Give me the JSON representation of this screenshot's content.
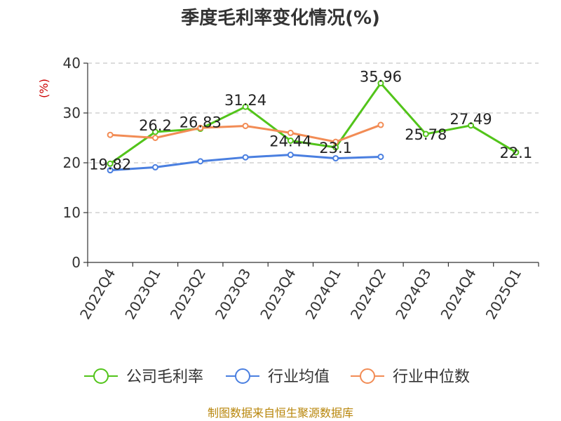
{
  "chart_data": {
    "type": "line",
    "title": "季度毛利率变化情况(%)",
    "unit_label": "(%)",
    "categories": [
      "2022Q4",
      "2023Q1",
      "2023Q2",
      "2023Q3",
      "2023Q4",
      "2024Q1",
      "2024Q2",
      "2024Q3",
      "2024Q4",
      "2025Q1"
    ],
    "ylim": [
      0,
      40
    ],
    "yticks": [
      0,
      10,
      20,
      30,
      40
    ],
    "grid": true,
    "legend_position": "bottom",
    "series": [
      {
        "name": "公司毛利率",
        "color": "#52c41a",
        "values": [
          19.82,
          26.2,
          26.83,
          31.24,
          24.44,
          23.1,
          35.96,
          25.78,
          27.49,
          22.1
        ],
        "labels": [
          "19.82",
          "26.2",
          "26.83",
          "31.24",
          "24.44",
          "23.1",
          "35.96",
          "25.78",
          "27.49",
          "22.1"
        ]
      },
      {
        "name": "行业均值",
        "color": "#4a7fe0",
        "values": [
          18.5,
          19.1,
          20.3,
          21.1,
          21.6,
          20.9,
          21.2,
          null,
          null,
          null
        ]
      },
      {
        "name": "行业中位数",
        "color": "#f28c55",
        "values": [
          25.6,
          25.0,
          27.0,
          27.4,
          26.0,
          24.2,
          27.6,
          null,
          null,
          null
        ]
      }
    ]
  },
  "source_text": "制图数据来自恒生聚源数据库"
}
